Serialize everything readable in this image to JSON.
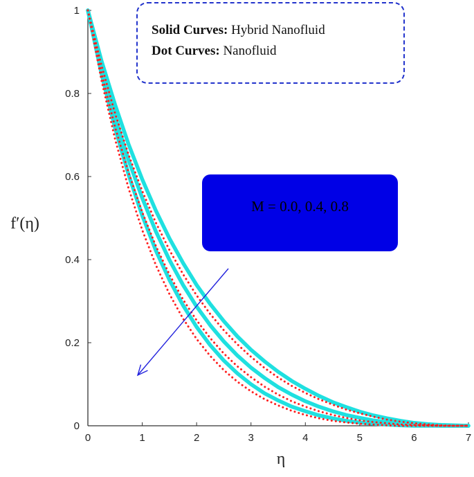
{
  "chart_data": {
    "type": "line",
    "xlabel": "η",
    "ylabel": "f′(η)",
    "xlim": [
      0,
      7
    ],
    "ylim": [
      0,
      1
    ],
    "x_ticks": [
      "0",
      "1",
      "2",
      "3",
      "4",
      "5",
      "6",
      "7"
    ],
    "y_ticks": [
      "0",
      "0.2",
      "0.4",
      "0.6",
      "0.8",
      "1"
    ],
    "legend": {
      "solid_label": "Solid Curves:",
      "solid_desc": "Hybrid Nanofluid",
      "dot_label": "Dot Curves:",
      "dot_desc": "Nanofluid"
    },
    "annotation": "M = 0.0, 0.4, 0.8",
    "colors": {
      "solid": "#1fe0e0",
      "dot": "#ff2020",
      "arrow": "#2222dd",
      "box": "#0000e6"
    },
    "x": [
      0,
      0.25,
      0.5,
      0.75,
      1,
      1.25,
      1.5,
      1.75,
      2,
      2.25,
      2.5,
      2.75,
      3,
      3.25,
      3.5,
      3.75,
      4,
      4.25,
      4.5,
      4.75,
      5,
      5.25,
      5.5,
      5.75,
      6,
      6.25,
      6.5,
      6.75,
      7
    ],
    "series": [
      {
        "style": "solid",
        "M": 0.0,
        "values": [
          1.0,
          0.879,
          0.773,
          0.677,
          0.593,
          0.518,
          0.451,
          0.392,
          0.339,
          0.293,
          0.252,
          0.215,
          0.183,
          0.155,
          0.13,
          0.108,
          0.089,
          0.072,
          0.057,
          0.045,
          0.034,
          0.025,
          0.018,
          0.012,
          0.007,
          0.004,
          0.002,
          0.001,
          0.0
        ]
      },
      {
        "style": "solid",
        "M": 0.4,
        "values": [
          1.0,
          0.863,
          0.744,
          0.639,
          0.548,
          0.468,
          0.399,
          0.339,
          0.287,
          0.242,
          0.203,
          0.169,
          0.14,
          0.115,
          0.093,
          0.075,
          0.059,
          0.046,
          0.035,
          0.026,
          0.019,
          0.013,
          0.009,
          0.005,
          0.003,
          0.001,
          0.0,
          0.0,
          0.0
        ]
      },
      {
        "style": "solid",
        "M": 0.8,
        "values": [
          1.0,
          0.848,
          0.717,
          0.604,
          0.506,
          0.422,
          0.351,
          0.29,
          0.238,
          0.194,
          0.157,
          0.126,
          0.1,
          0.078,
          0.061,
          0.046,
          0.035,
          0.025,
          0.018,
          0.012,
          0.008,
          0.005,
          0.003,
          0.001,
          0.0,
          0.0,
          0.0,
          0.0,
          0.0
        ]
      },
      {
        "style": "dot",
        "M": 0.0,
        "values": [
          1.0,
          0.868,
          0.752,
          0.652,
          0.565,
          0.489,
          0.423,
          0.365,
          0.314,
          0.269,
          0.23,
          0.196,
          0.166,
          0.139,
          0.116,
          0.096,
          0.079,
          0.064,
          0.051,
          0.039,
          0.03,
          0.022,
          0.015,
          0.01,
          0.006,
          0.003,
          0.001,
          0.0,
          0.0
        ]
      },
      {
        "style": "dot",
        "M": 0.4,
        "values": [
          1.0,
          0.849,
          0.719,
          0.609,
          0.514,
          0.433,
          0.364,
          0.304,
          0.254,
          0.211,
          0.174,
          0.143,
          0.117,
          0.094,
          0.075,
          0.059,
          0.046,
          0.035,
          0.026,
          0.019,
          0.013,
          0.009,
          0.006,
          0.003,
          0.002,
          0.001,
          0.0,
          0.0,
          0.0
        ]
      },
      {
        "style": "dot",
        "M": 0.8,
        "values": [
          1.0,
          0.832,
          0.69,
          0.571,
          0.471,
          0.387,
          0.317,
          0.258,
          0.209,
          0.168,
          0.134,
          0.106,
          0.083,
          0.064,
          0.049,
          0.036,
          0.026,
          0.018,
          0.012,
          0.008,
          0.005,
          0.003,
          0.001,
          0.0,
          0.0,
          0.0,
          0.0,
          0.0,
          0.0
        ]
      }
    ]
  }
}
